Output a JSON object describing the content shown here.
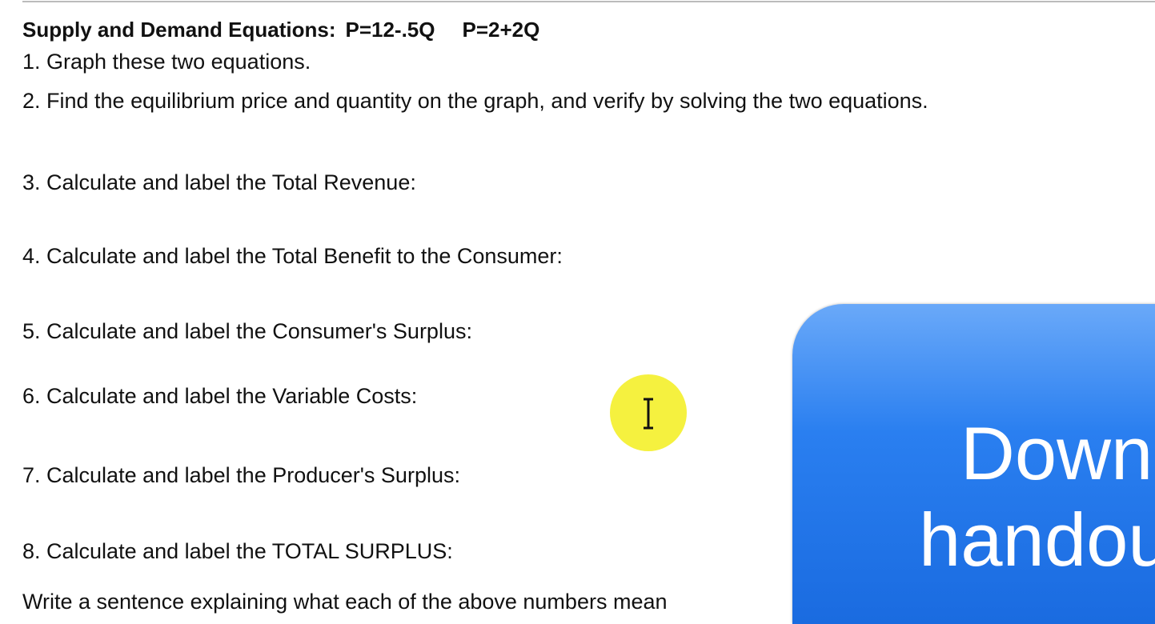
{
  "header": {
    "title": "Supply and Demand Equations:",
    "equations": [
      "P=12-.5Q",
      "P=2+2Q"
    ]
  },
  "items": [
    "1. Graph these two equations.",
    "2. Find the equilibrium price and quantity on the graph, and verify by solving the two equations.",
    "3. Calculate and label the Total Revenue:",
    "4. Calculate and label the Total Benefit to the Consumer:",
    "5. Calculate and label the Consumer's Surplus:",
    "6. Calculate and label the Variable Costs:",
    "7. Calculate and label the Producer's Surplus:",
    "8. Calculate and label the TOTAL SURPLUS:",
    "Write a sentence explaining what each of the above numbers mean"
  ],
  "overlay": {
    "lines": [
      "Down",
      "handou"
    ]
  }
}
